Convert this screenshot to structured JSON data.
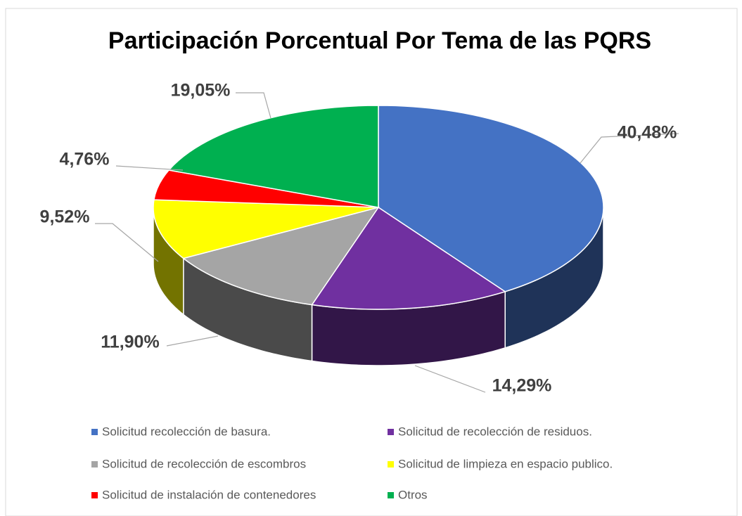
{
  "chart_data": {
    "type": "pie",
    "title": "Participación Porcentual Por Tema de las PQRS",
    "categories": [
      "Solicitud recolección de basura.",
      "Solicitud de recolección de residuos.",
      "Solicitud de recolección de escombros",
      "Solicitud de limpieza en espacio publico.",
      "Solicitud de instalación de contenedores",
      "Otros"
    ],
    "values": [
      40.48,
      14.29,
      11.9,
      9.52,
      4.76,
      19.05
    ],
    "value_labels": [
      "40,48%",
      "14,29%",
      "11,90%",
      "9,52%",
      "4,76%",
      "19,05%"
    ],
    "colors": [
      "#4472c4",
      "#7030a0",
      "#a5a5a5",
      "#ffff00",
      "#ff0000",
      "#00b050"
    ],
    "legend": "bottom"
  }
}
